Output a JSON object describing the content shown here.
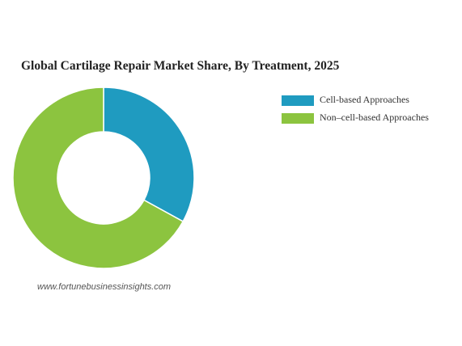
{
  "chart_data": {
    "type": "pie",
    "title": "Global Cartilage Repair Market Share, By Treatment, 2025",
    "categories": [
      "Cell-based Approaches",
      "Non–cell-based Approaches"
    ],
    "values": [
      33,
      67
    ],
    "colors": [
      "#1f9bc0",
      "#8cc43f"
    ],
    "donut": true,
    "source": "www.fortunebusinessinsights.com"
  }
}
